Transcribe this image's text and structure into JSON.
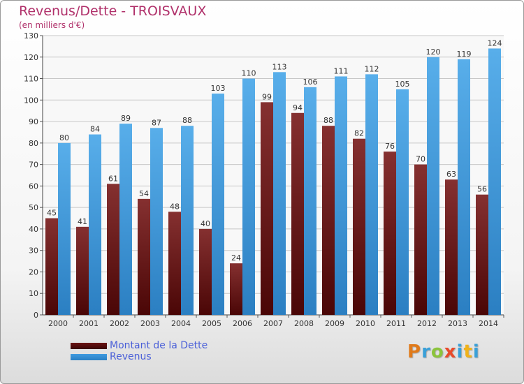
{
  "header": {
    "title": "Revenus/Dette - TROISVAUX",
    "subtitle": "(en milliers d'€)"
  },
  "colors": {
    "dette": "#7a1a1a",
    "revenus": "#3f9ae0",
    "title": "#b0306a",
    "legend_text": "#4a5fd8"
  },
  "legend": {
    "items": [
      {
        "label": "Montant de la Dette",
        "color": "#6b1414"
      },
      {
        "label": "Revenus",
        "color": "#3f9ae0"
      }
    ]
  },
  "logo": {
    "letters": [
      {
        "ch": "P",
        "color": "#e07a1a"
      },
      {
        "ch": "r",
        "color": "#3aa0d8"
      },
      {
        "ch": "o",
        "color": "#8cc43c"
      },
      {
        "ch": "x",
        "color": "#e94a2a"
      },
      {
        "ch": "i",
        "color": "#3aa0d8"
      },
      {
        "ch": "t",
        "color": "#f0b21a"
      },
      {
        "ch": "i",
        "color": "#3aa0d8"
      }
    ]
  },
  "chart_data": {
    "type": "bar",
    "categories": [
      "2000",
      "2001",
      "2002",
      "2003",
      "2004",
      "2005",
      "2006",
      "2007",
      "2008",
      "2009",
      "2010",
      "2011",
      "2012",
      "2013",
      "2014"
    ],
    "series": [
      {
        "name": "Montant de la Dette",
        "values": [
          45,
          41,
          61,
          54,
          48,
          40,
          24,
          99,
          94,
          88,
          82,
          76,
          70,
          63,
          56
        ]
      },
      {
        "name": "Revenus",
        "values": [
          80,
          84,
          89,
          87,
          88,
          103,
          110,
          113,
          106,
          111,
          112,
          105,
          120,
          119,
          124
        ]
      }
    ],
    "ylim": [
      0,
      130
    ],
    "yticks": [
      0,
      10,
      20,
      30,
      40,
      50,
      60,
      70,
      80,
      90,
      100,
      110,
      120,
      130
    ],
    "grid": true
  }
}
